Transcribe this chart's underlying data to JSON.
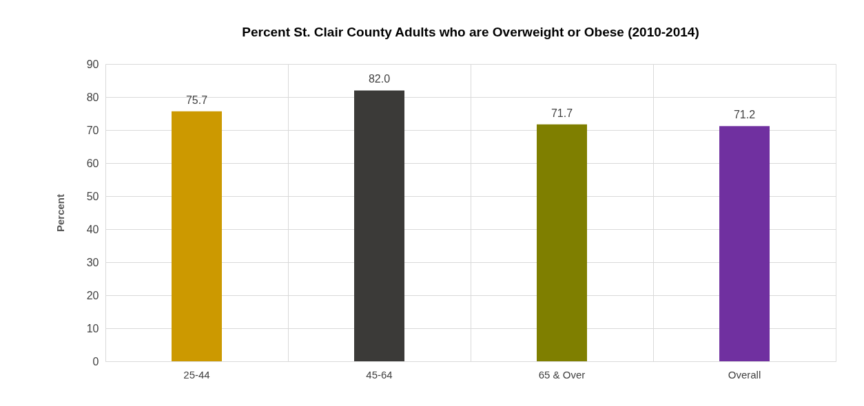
{
  "chart_data": {
    "type": "bar",
    "title": "Percent St. Clair County Adults who are Overweight or Obese (2010-2014)",
    "ylabel": "Percent",
    "categories": [
      "25-44",
      "45-64",
      "65 & Over",
      "Overall"
    ],
    "values": [
      75.7,
      82.0,
      71.7,
      71.2
    ],
    "colors": [
      "#cc9900",
      "#3b3a38",
      "#7f7f00",
      "#7030a0"
    ],
    "ylim": [
      0,
      90
    ],
    "yticks": [
      0,
      10,
      20,
      30,
      40,
      50,
      60,
      70,
      80,
      90
    ],
    "grid": true,
    "value_labels": [
      "75.7",
      "82.0",
      "71.7",
      "71.2"
    ]
  }
}
